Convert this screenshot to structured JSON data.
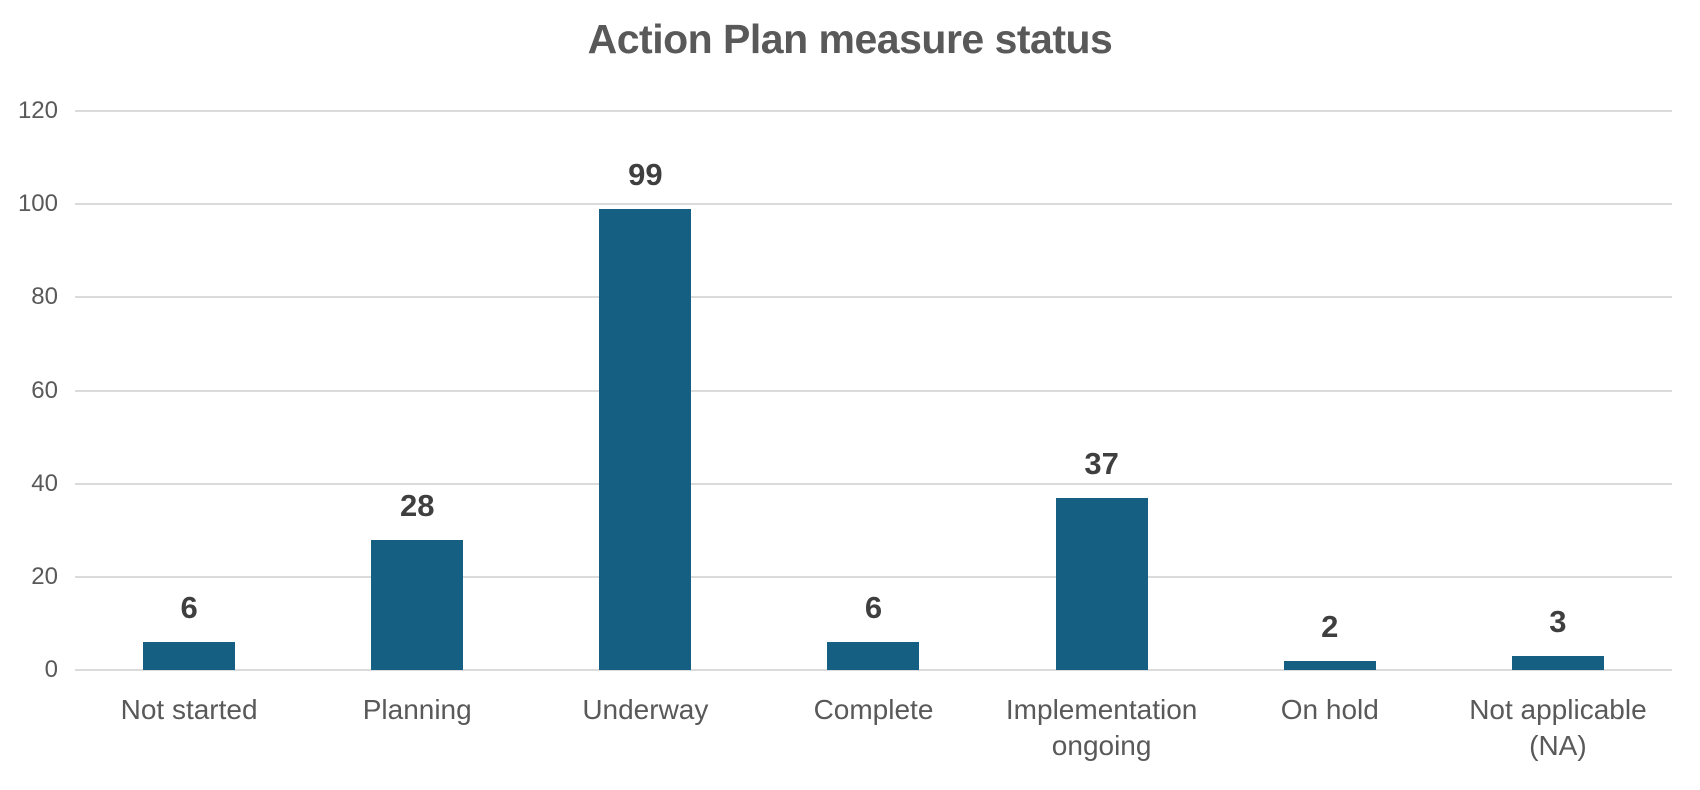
{
  "chart_data": {
    "type": "bar",
    "title": "Action Plan measure status",
    "categories": [
      "Not started",
      "Planning",
      "Underway",
      "Complete",
      "Implementation ongoing",
      "On hold",
      "Not applicable (NA)"
    ],
    "values": [
      6,
      28,
      99,
      6,
      37,
      2,
      3
    ],
    "data_labels": [
      "6",
      "28",
      "99",
      "6",
      "37",
      "2",
      "3"
    ],
    "xlabel": "",
    "ylabel": "",
    "ylim": [
      0,
      120
    ],
    "yticks": [
      0,
      20,
      40,
      60,
      80,
      100,
      120
    ],
    "grid": true,
    "legend": "none",
    "colors": {
      "bar_fill": "#156082",
      "title_text": "#595959",
      "axis_tick_text": "#595959",
      "category_text": "#595959",
      "value_label_text": "#3F3F3F",
      "gridline": "#DBDBDB",
      "background": "#FFFFFF"
    }
  }
}
